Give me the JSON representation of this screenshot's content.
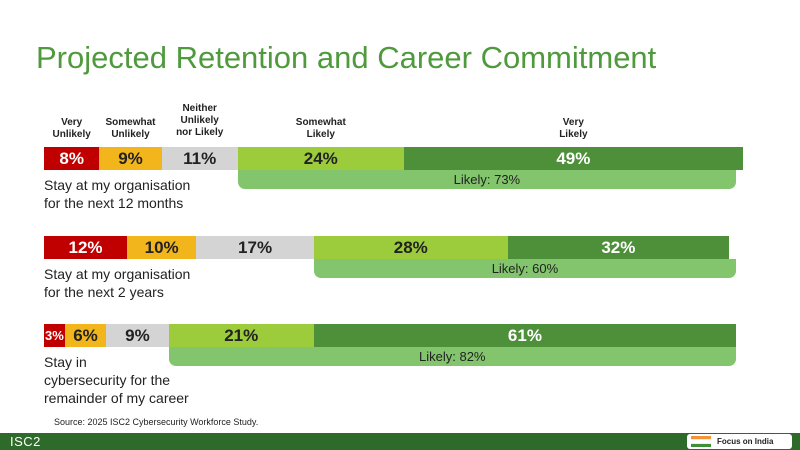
{
  "title": "Projected Retention and Career Commitment",
  "source": "Source: 2025 ISC2 Cybersecurity Workforce Study.",
  "footer": {
    "brand": "ISC2",
    "badge": "Focus on India"
  },
  "colors": {
    "very_unlikely": "#c00000",
    "somewhat_unlikely": "#f2b51c",
    "neutral": "#d4d4d4",
    "somewhat_likely": "#9ccc3c",
    "very_likely": "#4e8f3a",
    "likely_band": "#83c56d",
    "title": "#4e9a3c",
    "footer": "#2e6b2b"
  },
  "chart_data": {
    "type": "bar",
    "stacked": true,
    "orientation": "horizontal",
    "categories": [
      "Stay at my organisation\nfor the next 12 months",
      "Stay at my organisation\nfor the next 2 years",
      "Stay in\ncybersecurity for the\nremainder of my career"
    ],
    "series": [
      {
        "name": "Very\nUnlikely",
        "values": [
          8,
          12,
          3
        ],
        "labels": [
          "8%",
          "12%",
          "3%"
        ]
      },
      {
        "name": "Somewhat\nUnlikely",
        "values": [
          9,
          10,
          6
        ],
        "labels": [
          "9%",
          "10%",
          "6%"
        ]
      },
      {
        "name": "Neither\nUnlikely\nnor Likely",
        "values": [
          11,
          17,
          9
        ],
        "labels": [
          "11%",
          "17%",
          "9%"
        ]
      },
      {
        "name": "Somewhat\nLikely",
        "values": [
          24,
          28,
          21
        ],
        "labels": [
          "24%",
          "28%",
          "21%"
        ]
      },
      {
        "name": "Very\nLikely",
        "values": [
          49,
          32,
          61
        ],
        "labels": [
          "49%",
          "32%",
          "61%"
        ]
      }
    ],
    "likely_totals": [
      "Likely: 73%",
      "Likely: 60%",
      "Likely: 82%"
    ],
    "xlim": [
      0,
      100
    ]
  }
}
